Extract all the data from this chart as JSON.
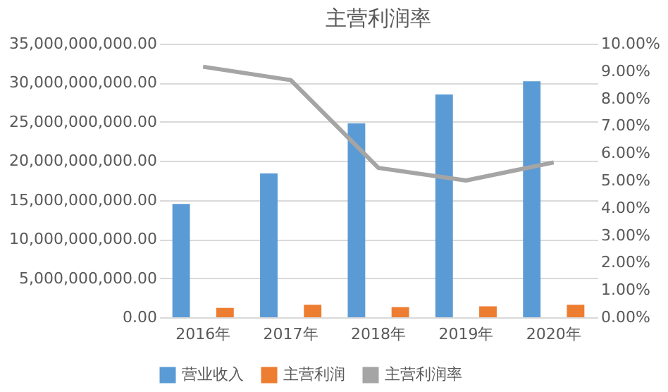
{
  "chart_data": {
    "type": "bar",
    "title": "主营利润率",
    "categories": [
      "2016年",
      "2017年",
      "2018年",
      "2019年",
      "2020年"
    ],
    "series": [
      {
        "name": "营业收入",
        "color": "#5b9bd5",
        "values": [
          14500000000,
          18400000000,
          24800000000,
          28500000000,
          30200000000
        ]
      },
      {
        "name": "主营利润",
        "color": "#ed7d31",
        "values": [
          1200000000,
          1600000000,
          1300000000,
          1400000000,
          1600000000
        ]
      },
      {
        "name": "主营利润率",
        "type": "line",
        "axis": "y2",
        "color": "#a5a5a5",
        "values": [
          9.16,
          8.67,
          5.46,
          5.0,
          5.66
        ]
      }
    ],
    "ylim": [
      0,
      35000000000
    ],
    "yticks": [
      {
        "value": 0,
        "label": "0.00"
      },
      {
        "value": 5000000000,
        "label": "5,000,000,000.00"
      },
      {
        "value": 10000000000,
        "label": "10,000,000,000.00"
      },
      {
        "value": 15000000000,
        "label": "15,000,000,000.00"
      },
      {
        "value": 20000000000,
        "label": "20,000,000,000.00"
      },
      {
        "value": 25000000000,
        "label": "25,000,000,000.00"
      },
      {
        "value": 30000000000,
        "label": "30,000,000,000.00"
      },
      {
        "value": 35000000000,
        "label": "35,000,000,000.00"
      }
    ],
    "y2lim": [
      0,
      10
    ],
    "y2ticks": [
      {
        "value": 0,
        "label": "0.00%"
      },
      {
        "value": 1,
        "label": "1.00%"
      },
      {
        "value": 2,
        "label": "2.00%"
      },
      {
        "value": 3,
        "label": "3.00%"
      },
      {
        "value": 4,
        "label": "4.00%"
      },
      {
        "value": 5,
        "label": "5.00%"
      },
      {
        "value": 6,
        "label": "6.00%"
      },
      {
        "value": 7,
        "label": "7.00%"
      },
      {
        "value": 8,
        "label": "8.00%"
      },
      {
        "value": 9,
        "label": "9.00%"
      },
      {
        "value": 10,
        "label": "10.00%"
      }
    ],
    "grid": "y",
    "legend": "bottom"
  }
}
